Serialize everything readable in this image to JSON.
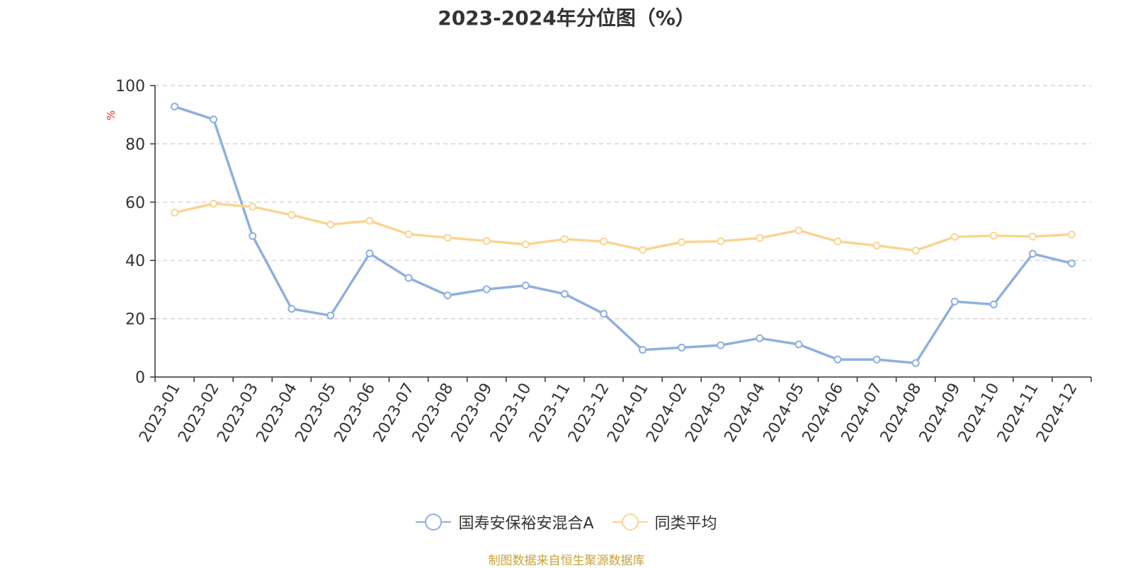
{
  "chart_data": {
    "type": "line",
    "title": "2023-2024年分位图（%）",
    "ylabel": "%",
    "xlabel": "",
    "ylim": [
      0,
      100
    ],
    "yticks": [
      0,
      20,
      40,
      60,
      80,
      100
    ],
    "grid": true,
    "legend_position": "bottom",
    "categories": [
      "2023-01",
      "2023-02",
      "2023-03",
      "2023-04",
      "2023-05",
      "2023-06",
      "2023-07",
      "2023-08",
      "2023-09",
      "2023-10",
      "2023-11",
      "2023-12",
      "2024-01",
      "2024-02",
      "2024-03",
      "2024-04",
      "2024-05",
      "2024-06",
      "2024-07",
      "2024-08",
      "2024-09",
      "2024-10",
      "2024-11",
      "2024-12"
    ],
    "series": [
      {
        "name": "国寿安保裕安混合A",
        "color": "#8eb0dc",
        "values": [
          92.8,
          88.4,
          48.4,
          23.4,
          21.1,
          42.4,
          34.0,
          28.0,
          30.1,
          31.4,
          28.5,
          21.7,
          9.3,
          10.1,
          10.9,
          13.3,
          11.2,
          6.0,
          6.0,
          4.8,
          25.9,
          24.9,
          42.3,
          39.0
        ]
      },
      {
        "name": "同类平均",
        "color": "#fad590",
        "values": [
          56.4,
          59.5,
          58.4,
          55.6,
          52.3,
          53.6,
          49.0,
          47.8,
          46.7,
          45.5,
          47.3,
          46.5,
          43.6,
          46.3,
          46.6,
          47.7,
          50.3,
          46.5,
          45.1,
          43.4,
          48.1,
          48.5,
          48.2,
          48.9
        ]
      }
    ]
  },
  "legend": [
    {
      "label": "国寿安保裕安混合A",
      "color": "#8eb0dc"
    },
    {
      "label": "同类平均",
      "color": "#fad590"
    }
  ],
  "source_note": "制图数据来自恒生聚源数据库"
}
